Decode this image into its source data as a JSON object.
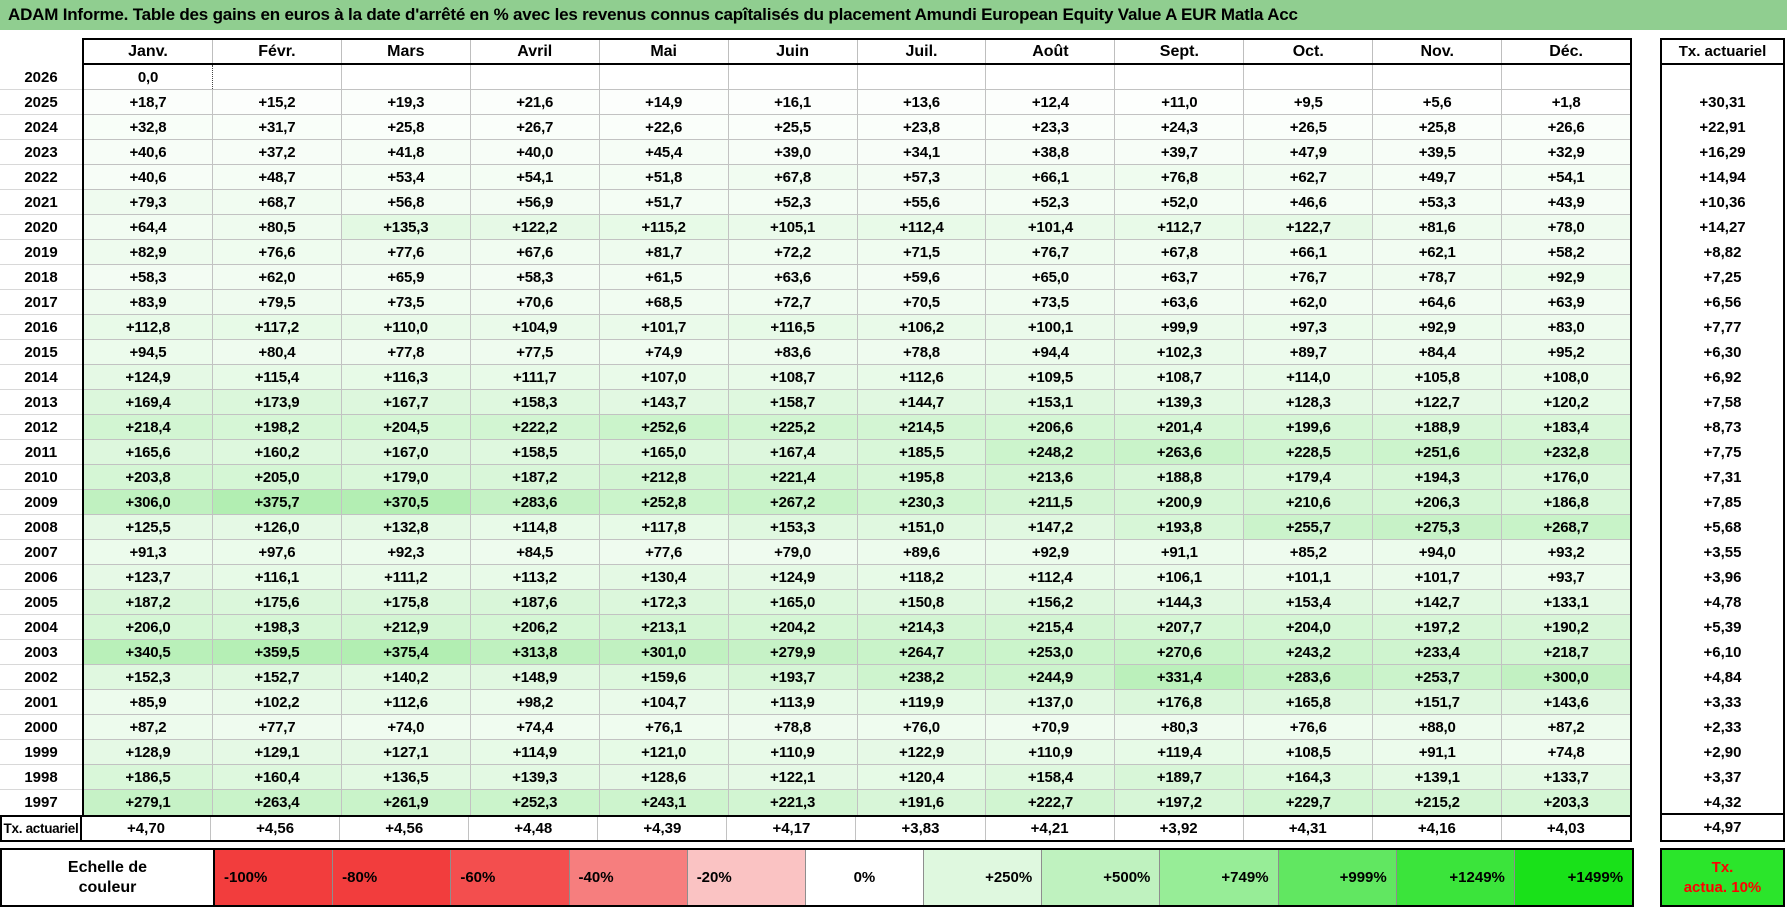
{
  "chart_data": {
    "type": "table",
    "title": "ADAM Informe. Table des gains en euros à la date d'arrêté en % avec les revenus connus capîtalisés du placement Amundi European Equity Value A EUR Matla Acc",
    "columns": [
      "Janv.",
      "Févr.",
      "Mars",
      "Avril",
      "Mai",
      "Juin",
      "Juil.",
      "Août",
      "Sept.",
      "Oct.",
      "Nov.",
      "Déc."
    ],
    "right_column_header": "Tx. actuariel",
    "cursor_cell": {
      "row_year": "2026",
      "col": 0
    },
    "rows": [
      {
        "year": "2026",
        "values": [
          "0,0",
          "",
          "",
          "",
          "",
          "",
          "",
          "",
          "",
          "",
          "",
          ""
        ],
        "tx": ""
      },
      {
        "year": "2025",
        "values": [
          "+18,7",
          "+15,2",
          "+19,3",
          "+21,6",
          "+14,9",
          "+16,1",
          "+13,6",
          "+12,4",
          "+11,0",
          "+9,5",
          "+5,6",
          "+1,8"
        ],
        "tx": "+30,31"
      },
      {
        "year": "2024",
        "values": [
          "+32,8",
          "+31,7",
          "+25,8",
          "+26,7",
          "+22,6",
          "+25,5",
          "+23,8",
          "+23,3",
          "+24,3",
          "+26,5",
          "+25,8",
          "+26,6"
        ],
        "tx": "+22,91"
      },
      {
        "year": "2023",
        "values": [
          "+40,6",
          "+37,2",
          "+41,8",
          "+40,0",
          "+45,4",
          "+39,0",
          "+34,1",
          "+38,8",
          "+39,7",
          "+47,9",
          "+39,5",
          "+32,9"
        ],
        "tx": "+16,29"
      },
      {
        "year": "2022",
        "values": [
          "+40,6",
          "+48,7",
          "+53,4",
          "+54,1",
          "+51,8",
          "+67,8",
          "+57,3",
          "+66,1",
          "+76,8",
          "+62,7",
          "+49,7",
          "+54,1"
        ],
        "tx": "+14,94"
      },
      {
        "year": "2021",
        "values": [
          "+79,3",
          "+68,7",
          "+56,8",
          "+56,9",
          "+51,7",
          "+52,3",
          "+55,6",
          "+52,3",
          "+52,0",
          "+46,6",
          "+53,3",
          "+43,9"
        ],
        "tx": "+10,36"
      },
      {
        "year": "2020",
        "values": [
          "+64,4",
          "+80,5",
          "+135,3",
          "+122,2",
          "+115,2",
          "+105,1",
          "+112,4",
          "+101,4",
          "+112,7",
          "+122,7",
          "+81,6",
          "+78,0"
        ],
        "tx": "+14,27"
      },
      {
        "year": "2019",
        "values": [
          "+82,9",
          "+76,6",
          "+77,6",
          "+67,6",
          "+81,7",
          "+72,2",
          "+71,5",
          "+76,7",
          "+67,8",
          "+66,1",
          "+62,1",
          "+58,2"
        ],
        "tx": "+8,82"
      },
      {
        "year": "2018",
        "values": [
          "+58,3",
          "+62,0",
          "+65,9",
          "+58,3",
          "+61,5",
          "+63,6",
          "+59,6",
          "+65,0",
          "+63,7",
          "+76,7",
          "+78,7",
          "+92,9"
        ],
        "tx": "+7,25"
      },
      {
        "year": "2017",
        "values": [
          "+83,9",
          "+79,5",
          "+73,5",
          "+70,6",
          "+68,5",
          "+72,7",
          "+70,5",
          "+73,5",
          "+63,6",
          "+62,0",
          "+64,6",
          "+63,9"
        ],
        "tx": "+6,56"
      },
      {
        "year": "2016",
        "values": [
          "+112,8",
          "+117,2",
          "+110,0",
          "+104,9",
          "+101,7",
          "+116,5",
          "+106,2",
          "+100,1",
          "+99,9",
          "+97,3",
          "+92,9",
          "+83,0"
        ],
        "tx": "+7,77"
      },
      {
        "year": "2015",
        "values": [
          "+94,5",
          "+80,4",
          "+77,8",
          "+77,5",
          "+74,9",
          "+83,6",
          "+78,8",
          "+94,4",
          "+102,3",
          "+89,7",
          "+84,4",
          "+95,2"
        ],
        "tx": "+6,30"
      },
      {
        "year": "2014",
        "values": [
          "+124,9",
          "+115,4",
          "+116,3",
          "+111,7",
          "+107,0",
          "+108,7",
          "+112,6",
          "+109,5",
          "+108,7",
          "+114,0",
          "+105,8",
          "+108,0"
        ],
        "tx": "+6,92"
      },
      {
        "year": "2013",
        "values": [
          "+169,4",
          "+173,9",
          "+167,7",
          "+158,3",
          "+143,7",
          "+158,7",
          "+144,7",
          "+153,1",
          "+139,3",
          "+128,3",
          "+122,7",
          "+120,2"
        ],
        "tx": "+7,58"
      },
      {
        "year": "2012",
        "values": [
          "+218,4",
          "+198,2",
          "+204,5",
          "+222,2",
          "+252,6",
          "+225,2",
          "+214,5",
          "+206,6",
          "+201,4",
          "+199,6",
          "+188,9",
          "+183,4"
        ],
        "tx": "+8,73"
      },
      {
        "year": "2011",
        "values": [
          "+165,6",
          "+160,2",
          "+167,0",
          "+158,5",
          "+165,0",
          "+167,4",
          "+185,5",
          "+248,2",
          "+263,6",
          "+228,5",
          "+251,6",
          "+232,8"
        ],
        "tx": "+7,75"
      },
      {
        "year": "2010",
        "values": [
          "+203,8",
          "+205,0",
          "+179,0",
          "+187,2",
          "+212,8",
          "+221,4",
          "+195,8",
          "+213,6",
          "+188,8",
          "+179,4",
          "+194,3",
          "+176,0"
        ],
        "tx": "+7,31"
      },
      {
        "year": "2009",
        "values": [
          "+306,0",
          "+375,7",
          "+370,5",
          "+283,6",
          "+252,8",
          "+267,2",
          "+230,3",
          "+211,5",
          "+200,9",
          "+210,6",
          "+206,3",
          "+186,8"
        ],
        "tx": "+7,85"
      },
      {
        "year": "2008",
        "values": [
          "+125,5",
          "+126,0",
          "+132,8",
          "+114,8",
          "+117,8",
          "+153,3",
          "+151,0",
          "+147,2",
          "+193,8",
          "+255,7",
          "+275,3",
          "+268,7"
        ],
        "tx": "+5,68"
      },
      {
        "year": "2007",
        "values": [
          "+91,3",
          "+97,6",
          "+92,3",
          "+84,5",
          "+77,6",
          "+79,0",
          "+89,6",
          "+92,9",
          "+91,1",
          "+85,2",
          "+94,0",
          "+93,2"
        ],
        "tx": "+3,55"
      },
      {
        "year": "2006",
        "values": [
          "+123,7",
          "+116,1",
          "+111,2",
          "+113,2",
          "+130,4",
          "+124,9",
          "+118,2",
          "+112,4",
          "+106,1",
          "+101,1",
          "+101,7",
          "+93,7"
        ],
        "tx": "+3,96"
      },
      {
        "year": "2005",
        "values": [
          "+187,2",
          "+175,6",
          "+175,8",
          "+187,6",
          "+172,3",
          "+165,0",
          "+150,8",
          "+156,2",
          "+144,3",
          "+153,4",
          "+142,7",
          "+133,1"
        ],
        "tx": "+4,78"
      },
      {
        "year": "2004",
        "values": [
          "+206,0",
          "+198,3",
          "+212,9",
          "+206,2",
          "+213,1",
          "+204,2",
          "+214,3",
          "+215,4",
          "+207,7",
          "+204,0",
          "+197,2",
          "+190,2"
        ],
        "tx": "+5,39"
      },
      {
        "year": "2003",
        "values": [
          "+340,5",
          "+359,5",
          "+375,4",
          "+313,8",
          "+301,0",
          "+279,9",
          "+264,7",
          "+253,0",
          "+270,6",
          "+243,2",
          "+233,4",
          "+218,7"
        ],
        "tx": "+6,10"
      },
      {
        "year": "2002",
        "values": [
          "+152,3",
          "+152,7",
          "+140,2",
          "+148,9",
          "+159,6",
          "+193,7",
          "+238,2",
          "+244,9",
          "+331,4",
          "+283,6",
          "+253,7",
          "+300,0"
        ],
        "tx": "+4,84"
      },
      {
        "year": "2001",
        "values": [
          "+85,9",
          "+102,2",
          "+112,6",
          "+98,2",
          "+104,7",
          "+113,9",
          "+119,9",
          "+137,0",
          "+176,8",
          "+165,8",
          "+151,7",
          "+143,6"
        ],
        "tx": "+3,33"
      },
      {
        "year": "2000",
        "values": [
          "+87,2",
          "+77,7",
          "+74,0",
          "+74,4",
          "+76,1",
          "+78,8",
          "+76,0",
          "+70,9",
          "+80,3",
          "+76,6",
          "+88,0",
          "+87,2"
        ],
        "tx": "+2,33"
      },
      {
        "year": "1999",
        "values": [
          "+128,9",
          "+129,1",
          "+127,1",
          "+114,9",
          "+121,0",
          "+110,9",
          "+122,9",
          "+110,9",
          "+119,4",
          "+108,5",
          "+91,1",
          "+74,8"
        ],
        "tx": "+2,90"
      },
      {
        "year": "1998",
        "values": [
          "+186,5",
          "+160,4",
          "+136,5",
          "+139,3",
          "+128,6",
          "+122,1",
          "+120,4",
          "+158,4",
          "+189,7",
          "+164,3",
          "+139,1",
          "+133,7"
        ],
        "tx": "+3,37"
      },
      {
        "year": "1997",
        "values": [
          "+279,1",
          "+263,4",
          "+261,9",
          "+252,3",
          "+243,1",
          "+221,3",
          "+191,6",
          "+222,7",
          "+197,2",
          "+229,7",
          "+215,2",
          "+203,3"
        ],
        "tx": "+4,32"
      }
    ],
    "bottom_row": {
      "label": "Tx. actuariel",
      "values": [
        "+4,70",
        "+4,56",
        "+4,56",
        "+4,48",
        "+4,39",
        "+4,17",
        "+3,83",
        "+4,21",
        "+3,92",
        "+4,31",
        "+4,16",
        "+4,03"
      ],
      "tx": "+4,97"
    }
  },
  "color_scale": {
    "label_line1": "Echelle de",
    "label_line2": "couleur",
    "cells": [
      {
        "label": "-100%",
        "color": "#F23D3D",
        "align": "left"
      },
      {
        "label": "-80%",
        "color": "#F23D3D",
        "align": "left"
      },
      {
        "label": "-60%",
        "color": "#F34E4E",
        "align": "left"
      },
      {
        "label": "-40%",
        "color": "#F67E7E",
        "align": "left"
      },
      {
        "label": "-20%",
        "color": "#FAC3C3",
        "align": "left"
      },
      {
        "label": "0%",
        "color": "#FFFFFF",
        "align": "center"
      },
      {
        "label": "+250%",
        "color": "#DFF8DF",
        "align": "right"
      },
      {
        "label": "+500%",
        "color": "#BFF2BF",
        "align": "right"
      },
      {
        "label": "+749%",
        "color": "#97ED97",
        "align": "right"
      },
      {
        "label": "+999%",
        "color": "#61E761",
        "align": "right"
      },
      {
        "label": "+1249%",
        "color": "#3BE43B",
        "align": "right"
      },
      {
        "label": "+1499%",
        "color": "#19E119",
        "align": "right"
      }
    ],
    "right_box": {
      "line1": "Tx.",
      "line2": "actua. 10%",
      "bg": "#2BE52B",
      "text_color": "#FF0000"
    }
  },
  "colors": {
    "title_bg": "#90CE90",
    "heat_zero": "#FFFFFF",
    "heat_green_max": "#19E119",
    "gridline": "#C2C2C2",
    "border": "#000000"
  }
}
